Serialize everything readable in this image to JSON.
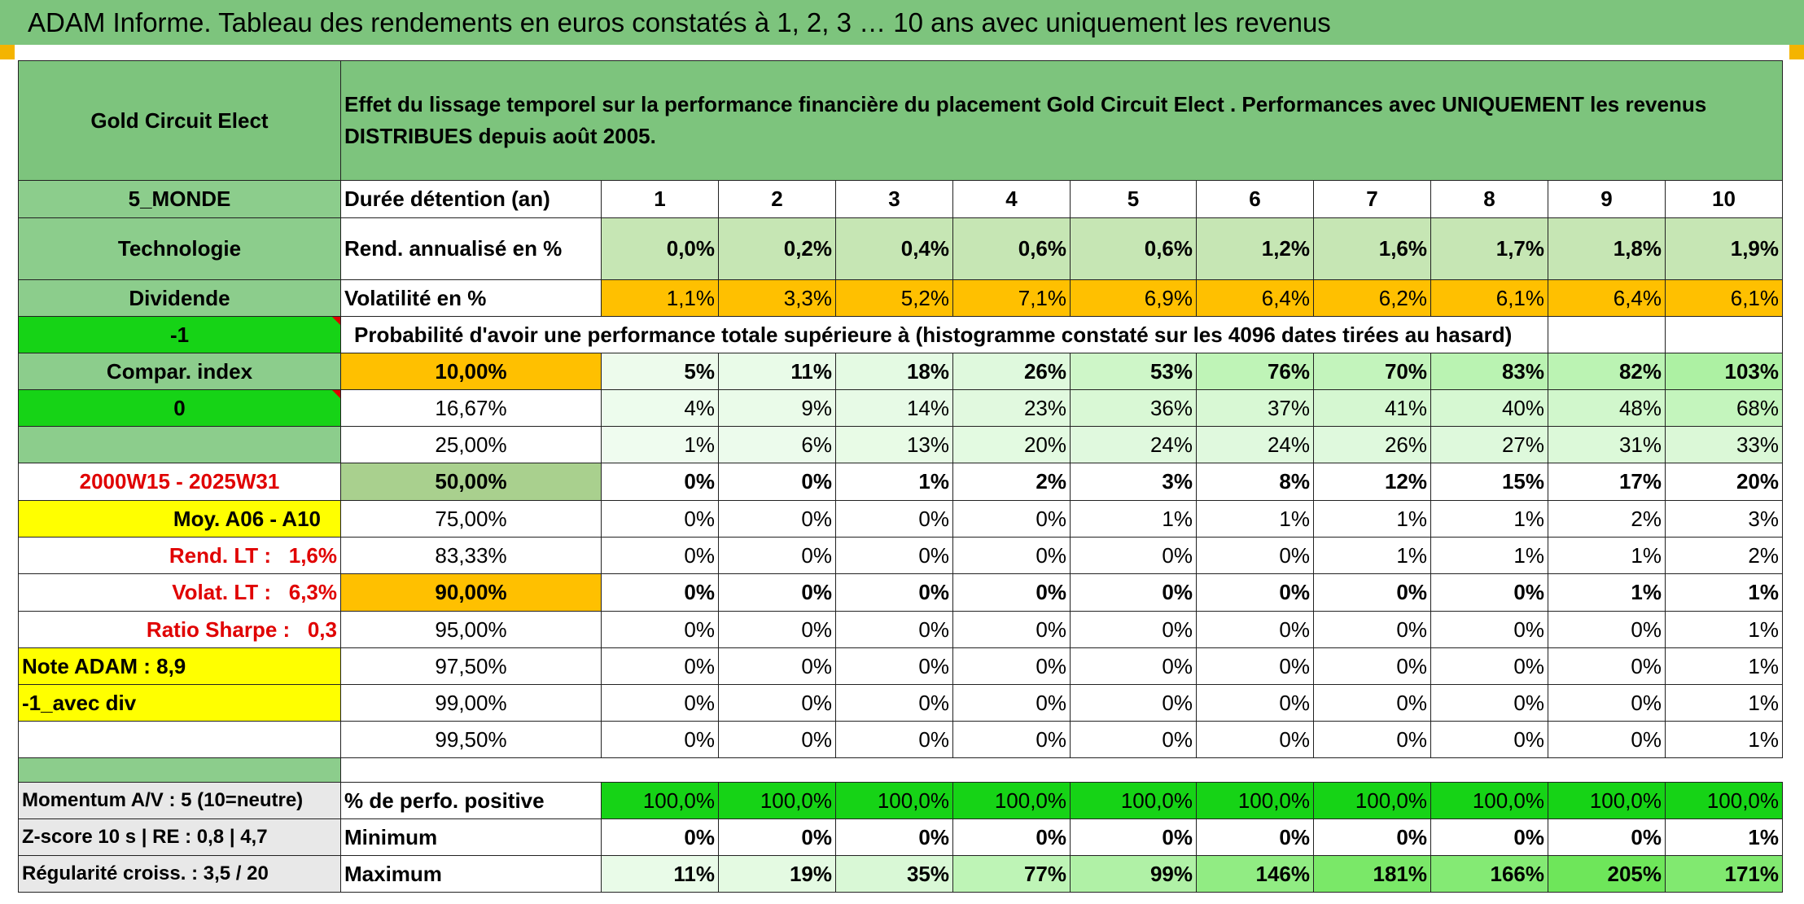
{
  "title": "ADAM Informe. Tableau des rendements en euros constatés à 1, 2, 3 … 10 ans avec uniquement les revenus",
  "fund_name": "Gold Circuit Elect",
  "description": "Effet du lissage temporel sur la performance financière du placement Gold Circuit Elect . Performances avec UNIQUEMENT les revenus DISTRIBUES depuis août 2005.",
  "left": {
    "zone": "5_MONDE",
    "sector": "Technologie",
    "type": "Dividende",
    "code": "-1",
    "compar_index": "Compar. index",
    "zero": "0",
    "period": "2000W15 - 2025W31",
    "moy": "Moy. A06 - A10",
    "rend_lt_label": "Rend. LT :",
    "rend_lt_value": "1,6%",
    "volat_lt_label": "Volat. LT :",
    "volat_lt_value": "6,3%",
    "sharpe_label": "Ratio Sharpe :",
    "sharpe_value": "0,3",
    "note": "Note ADAM : 8,9",
    "avec_div": "-1_avec div",
    "momentum": "Momentum A/V : 5 (10=neutre)",
    "zscore": "Z-score 10 s | RE : 0,8 | 4,7",
    "regularite": "Régularité croiss. : 3,5 / 20"
  },
  "duree_label": "Durée détention (an)",
  "years": [
    "1",
    "2",
    "3",
    "4",
    "5",
    "6",
    "7",
    "8",
    "9",
    "10"
  ],
  "rend_label": "Rend. annualisé en %",
  "rend": [
    "0,0%",
    "0,2%",
    "0,4%",
    "0,6%",
    "0,6%",
    "1,2%",
    "1,6%",
    "1,7%",
    "1,8%",
    "1,9%"
  ],
  "vol_label": "Volatilité en %",
  "vol": [
    "1,1%",
    "3,3%",
    "5,2%",
    "7,1%",
    "6,9%",
    "6,4%",
    "6,2%",
    "6,1%",
    "6,4%",
    "6,1%"
  ],
  "prob_label": "Probabilité d'avoir une performance totale supérieure à (histogramme constaté sur les 4096 dates tirées au hasard)",
  "prob_rows": [
    {
      "threshold": "10,00%",
      "values": [
        "5%",
        "11%",
        "18%",
        "26%",
        "53%",
        "76%",
        "70%",
        "83%",
        "82%",
        "103%"
      ]
    },
    {
      "threshold": "16,67%",
      "values": [
        "4%",
        "9%",
        "14%",
        "23%",
        "36%",
        "37%",
        "41%",
        "40%",
        "48%",
        "68%"
      ]
    },
    {
      "threshold": "25,00%",
      "values": [
        "1%",
        "6%",
        "13%",
        "20%",
        "24%",
        "24%",
        "26%",
        "27%",
        "31%",
        "33%"
      ]
    },
    {
      "threshold": "50,00%",
      "values": [
        "0%",
        "0%",
        "1%",
        "2%",
        "3%",
        "8%",
        "12%",
        "15%",
        "17%",
        "20%"
      ]
    },
    {
      "threshold": "75,00%",
      "values": [
        "0%",
        "0%",
        "0%",
        "0%",
        "1%",
        "1%",
        "1%",
        "1%",
        "2%",
        "3%"
      ]
    },
    {
      "threshold": "83,33%",
      "values": [
        "0%",
        "0%",
        "0%",
        "0%",
        "0%",
        "0%",
        "1%",
        "1%",
        "1%",
        "2%"
      ]
    },
    {
      "threshold": "90,00%",
      "values": [
        "0%",
        "0%",
        "0%",
        "0%",
        "0%",
        "0%",
        "0%",
        "0%",
        "1%",
        "1%"
      ]
    },
    {
      "threshold": "95,00%",
      "values": [
        "0%",
        "0%",
        "0%",
        "0%",
        "0%",
        "0%",
        "0%",
        "0%",
        "0%",
        "1%"
      ]
    },
    {
      "threshold": "97,50%",
      "values": [
        "0%",
        "0%",
        "0%",
        "0%",
        "0%",
        "0%",
        "0%",
        "0%",
        "0%",
        "1%"
      ]
    },
    {
      "threshold": "99,00%",
      "values": [
        "0%",
        "0%",
        "0%",
        "0%",
        "0%",
        "0%",
        "0%",
        "0%",
        "0%",
        "1%"
      ]
    },
    {
      "threshold": "99,50%",
      "values": [
        "0%",
        "0%",
        "0%",
        "0%",
        "0%",
        "0%",
        "0%",
        "0%",
        "0%",
        "1%"
      ]
    }
  ],
  "pos_label": "% de perfo. positive",
  "pos": [
    "100,0%",
    "100,0%",
    "100,0%",
    "100,0%",
    "100,0%",
    "100,0%",
    "100,0%",
    "100,0%",
    "100,0%",
    "100,0%"
  ],
  "min_label": "Minimum",
  "min": [
    "0%",
    "0%",
    "0%",
    "0%",
    "0%",
    "0%",
    "0%",
    "0%",
    "0%",
    "1%"
  ],
  "max_label": "Maximum",
  "max": [
    "11%",
    "19%",
    "35%",
    "77%",
    "99%",
    "146%",
    "181%",
    "166%",
    "205%",
    "171%"
  ],
  "colors": {
    "header_green": "#7dc47d",
    "bright_green": "#16d316",
    "orange": "#ffc000",
    "yellow": "#ffff00",
    "light_green": "#c6e6b4",
    "red_text": "#e00000"
  }
}
